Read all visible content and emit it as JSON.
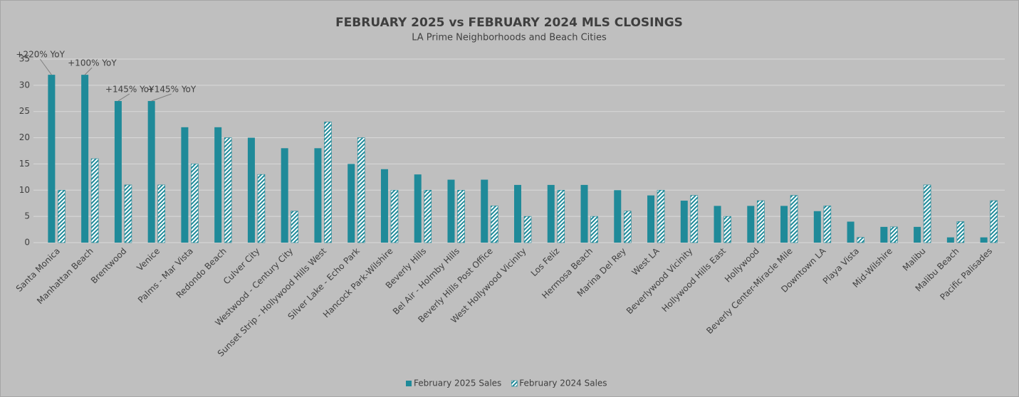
{
  "chart_data": {
    "type": "bar",
    "title": "FEBRUARY 2025 vs FEBRUARY 2024 MLS CLOSINGS",
    "subtitle": "LA Prime Neighborhoods and Beach Cities",
    "categories": [
      "Santa Monica",
      "Manhattan Beach",
      "Brentwood",
      "Venice",
      "Palms - Mar Vista",
      "Redondo Beach",
      "Culver City",
      "Westwood - Century City",
      "Sunset Strip - Hollywood Hills West",
      "Silver Lake - Echo Park",
      "Hancock Park-Wilshire",
      "Beverly Hills",
      "Bel Air - Holmby Hills",
      "Beverly Hills Post Office",
      "West Hollywood Vicinity",
      "Los Feliz",
      "Hermosa Beach",
      "Marina Del Rey",
      "West LA",
      "Beverlywood Vicinity",
      "Hollywood Hills East",
      "Hollywood",
      "Beverly Center-Miracle Mile",
      "Downtown LA",
      "Playa Vista",
      "Mid-Wilshire",
      "Malibu",
      "Malibu Beach",
      "Pacific Palisades"
    ],
    "series": [
      {
        "name": "February 2025 Sales",
        "color": "#1f8a99",
        "pattern": "solid",
        "values": [
          32,
          32,
          27,
          27,
          22,
          22,
          20,
          18,
          18,
          15,
          14,
          13,
          12,
          12,
          11,
          11,
          11,
          10,
          9,
          8,
          7,
          7,
          7,
          6,
          4,
          3,
          3,
          1,
          1
        ]
      },
      {
        "name": "February 2024 Sales",
        "color": "#1f8a99",
        "pattern": "hatch",
        "values": [
          10,
          16,
          11,
          11,
          15,
          20,
          13,
          6,
          23,
          20,
          10,
          10,
          10,
          7,
          5,
          10,
          5,
          6,
          10,
          9,
          5,
          8,
          9,
          7,
          1,
          3,
          11,
          4,
          8
        ]
      }
    ],
    "annotations": [
      {
        "category": "Santa Monica",
        "text": "+220% YoY"
      },
      {
        "category": "Manhattan Beach",
        "text": "+100% YoY"
      },
      {
        "category": "Brentwood",
        "text": "+145% YoY"
      },
      {
        "category": "Venice",
        "text": "+145% YoY"
      }
    ],
    "ylim": [
      0,
      35
    ],
    "yticks": [
      0,
      5,
      10,
      15,
      20,
      25,
      30,
      35
    ],
    "grid": true,
    "legend": "bottom"
  }
}
